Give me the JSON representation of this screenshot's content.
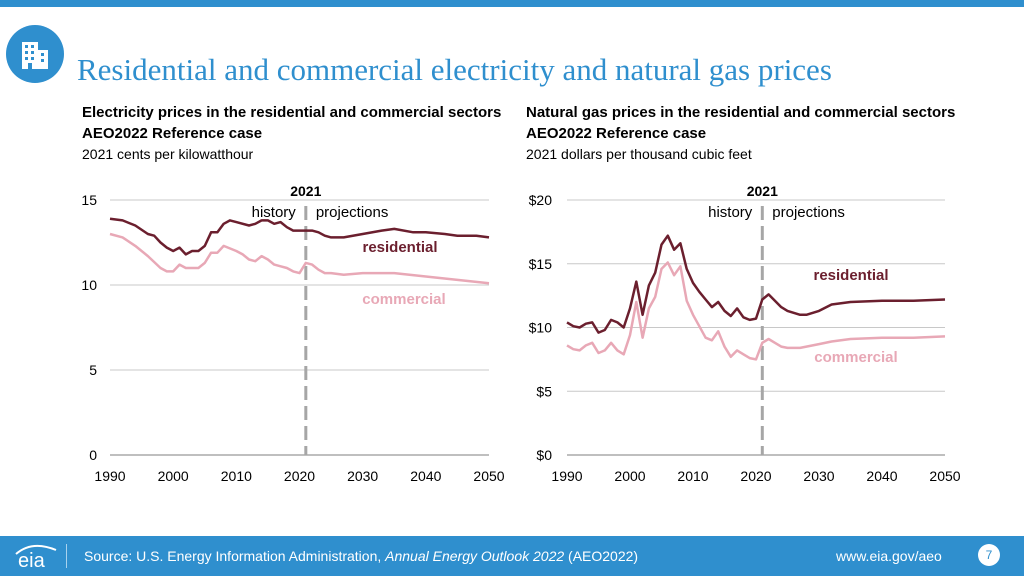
{
  "title": "Residential and commercial electricity and natural gas prices",
  "charts": [
    {
      "heading1": "Electricity prices in the residential and commercial sectors",
      "heading2": "AEO2022 Reference case",
      "units": "2021 cents per kilowatthour"
    },
    {
      "heading1": "Natural gas prices in the residential and commercial sectors",
      "heading2": "AEO2022 Reference case",
      "units": "2021 dollars per thousand cubic feet"
    }
  ],
  "colors": {
    "accent": "#2f8fce",
    "residential": "#6b1f2e",
    "commercial": "#e8a8b6",
    "grid": "#c8c8c8",
    "divider": "#a6a6a6"
  },
  "chart_data": [
    {
      "type": "line",
      "title": "Electricity prices in the residential and commercial sectors",
      "subtitle": "AEO2022 Reference case",
      "ylabel": "2021 cents per kilowatthour",
      "xlim": [
        1990,
        2050
      ],
      "ylim": [
        0,
        15
      ],
      "x_ticks": [
        "1990",
        "2000",
        "2010",
        "2020",
        "2030",
        "2040",
        "2050"
      ],
      "y_ticks": [
        "0",
        "5",
        "10",
        "15"
      ],
      "divider_year": 2021,
      "divider_label": "2021",
      "history_label": "history",
      "projection_label": "projections",
      "series": [
        {
          "name": "residential",
          "x": [
            1990,
            1992,
            1994,
            1996,
            1997,
            1998,
            1999,
            2000,
            2001,
            2002,
            2003,
            2004,
            2005,
            2006,
            2007,
            2008,
            2009,
            2010,
            2012,
            2013,
            2014,
            2015,
            2016,
            2017,
            2018,
            2019,
            2020,
            2021,
            2022,
            2023,
            2024,
            2025,
            2027,
            2030,
            2033,
            2035,
            2038,
            2040,
            2043,
            2045,
            2048,
            2050
          ],
          "values": [
            13.9,
            13.8,
            13.5,
            13.0,
            12.9,
            12.5,
            12.2,
            12.0,
            12.2,
            11.8,
            12.0,
            12.0,
            12.3,
            13.1,
            13.1,
            13.6,
            13.8,
            13.7,
            13.5,
            13.6,
            13.8,
            13.8,
            13.6,
            13.7,
            13.4,
            13.2,
            13.2,
            13.2,
            13.2,
            13.1,
            12.9,
            12.8,
            12.8,
            13.0,
            13.2,
            13.3,
            13.1,
            13.1,
            13.0,
            12.9,
            12.9,
            12.8
          ]
        },
        {
          "name": "commercial",
          "x": [
            1990,
            1992,
            1994,
            1996,
            1998,
            1999,
            2000,
            2001,
            2002,
            2004,
            2005,
            2006,
            2007,
            2008,
            2010,
            2011,
            2012,
            2013,
            2014,
            2015,
            2016,
            2017,
            2018,
            2019,
            2020,
            2021,
            2022,
            2023,
            2024,
            2025,
            2027,
            2030,
            2033,
            2035,
            2040,
            2045,
            2050
          ],
          "values": [
            13.0,
            12.8,
            12.3,
            11.7,
            11.0,
            10.8,
            10.8,
            11.2,
            11.0,
            11.0,
            11.3,
            11.9,
            11.9,
            12.3,
            12.0,
            11.8,
            11.5,
            11.4,
            11.7,
            11.5,
            11.2,
            11.1,
            11.0,
            10.8,
            10.7,
            11.3,
            11.2,
            10.9,
            10.7,
            10.7,
            10.6,
            10.7,
            10.7,
            10.7,
            10.5,
            10.3,
            10.1
          ]
        }
      ],
      "annotations": [
        {
          "text": "residential"
        },
        {
          "text": "commercial"
        }
      ]
    },
    {
      "type": "line",
      "title": "Natural gas prices in the residential and commercial sectors",
      "subtitle": "AEO2022 Reference case",
      "ylabel": "2021 dollars per thousand cubic feet",
      "xlim": [
        1990,
        2050
      ],
      "ylim": [
        0,
        20
      ],
      "x_ticks": [
        "1990",
        "2000",
        "2010",
        "2020",
        "2030",
        "2040",
        "2050"
      ],
      "y_ticks": [
        "$0",
        "$5",
        "$10",
        "$15",
        "$20"
      ],
      "divider_year": 2021,
      "divider_label": "2021",
      "history_label": "history",
      "projection_label": "projections",
      "series": [
        {
          "name": "residential",
          "x": [
            1990,
            1991,
            1992,
            1993,
            1994,
            1995,
            1996,
            1997,
            1998,
            1999,
            2000,
            2001,
            2002,
            2003,
            2004,
            2005,
            2006,
            2007,
            2008,
            2009,
            2010,
            2011,
            2012,
            2013,
            2014,
            2015,
            2016,
            2017,
            2018,
            2019,
            2020,
            2021,
            2022,
            2023,
            2024,
            2025,
            2027,
            2028,
            2030,
            2032,
            2035,
            2040,
            2045,
            2050
          ],
          "values": [
            10.4,
            10.1,
            10.0,
            10.3,
            10.4,
            9.6,
            9.8,
            10.6,
            10.4,
            10.0,
            11.5,
            13.6,
            11.0,
            13.3,
            14.3,
            16.5,
            17.2,
            16.1,
            16.6,
            14.6,
            13.5,
            12.8,
            12.2,
            11.6,
            12.0,
            11.3,
            10.9,
            11.5,
            10.8,
            10.6,
            10.7,
            12.2,
            12.6,
            12.1,
            11.6,
            11.3,
            11.0,
            11.0,
            11.3,
            11.8,
            12.0,
            12.1,
            12.1,
            12.2
          ]
        },
        {
          "name": "commercial",
          "x": [
            1990,
            1991,
            1992,
            1993,
            1994,
            1995,
            1996,
            1997,
            1998,
            1999,
            2000,
            2001,
            2002,
            2003,
            2004,
            2005,
            2006,
            2007,
            2008,
            2009,
            2010,
            2011,
            2012,
            2013,
            2014,
            2015,
            2016,
            2017,
            2018,
            2019,
            2020,
            2021,
            2022,
            2023,
            2024,
            2025,
            2027,
            2028,
            2030,
            2032,
            2035,
            2040,
            2045,
            2050
          ],
          "values": [
            8.6,
            8.3,
            8.2,
            8.6,
            8.8,
            8.0,
            8.2,
            8.8,
            8.2,
            7.9,
            9.4,
            12.0,
            9.2,
            11.5,
            12.4,
            14.6,
            15.1,
            14.1,
            14.8,
            12.1,
            11.0,
            10.1,
            9.2,
            9.0,
            9.7,
            8.5,
            7.7,
            8.2,
            7.9,
            7.6,
            7.5,
            8.8,
            9.1,
            8.8,
            8.5,
            8.4,
            8.4,
            8.5,
            8.7,
            8.9,
            9.1,
            9.2,
            9.2,
            9.3
          ]
        }
      ],
      "annotations": [
        {
          "text": "residential"
        },
        {
          "text": "commercial"
        }
      ]
    }
  ],
  "footer": {
    "logo_text": "eia",
    "source_prefix": "Source: U.S. Energy Information Administration, ",
    "source_title": "Annual Energy Outlook 2022",
    "source_suffix": " (AEO2022)",
    "url": "www.eia.gov/aeo",
    "page_number": "7"
  }
}
